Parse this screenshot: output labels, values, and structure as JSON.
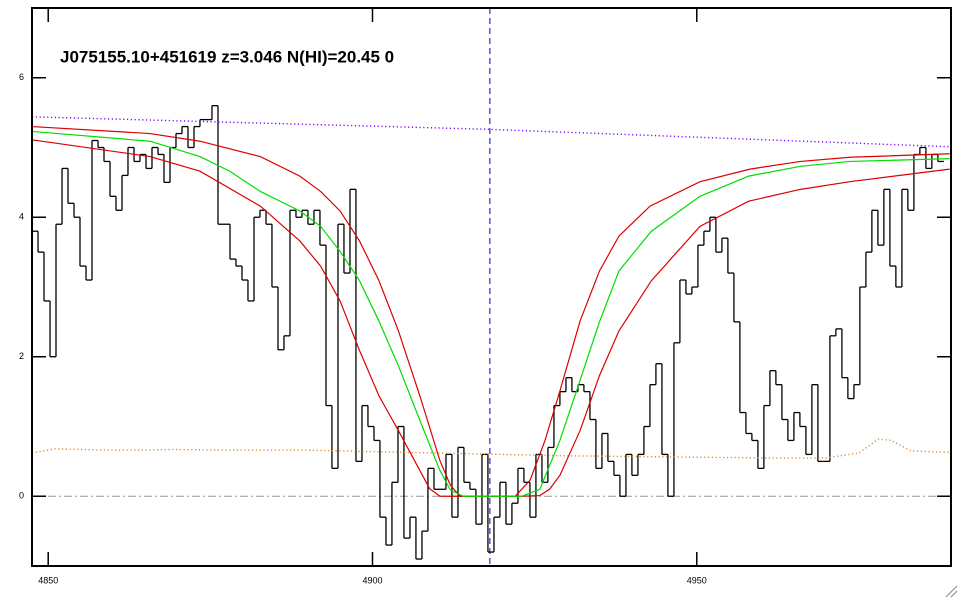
{
  "chart_data": {
    "type": "line",
    "title": "J075155.10+451619 z=3.046 N(HI)=20.45 0",
    "xlim": [
      4847.5,
      4989.2
    ],
    "ylim": [
      -1.0,
      7.0
    ],
    "xticks": [
      4850,
      4900,
      4950
    ],
    "yticks": [
      0,
      2,
      4,
      6
    ],
    "vline": 4918.1,
    "vline_color": "#0000cc",
    "hline": 0,
    "hline_color": "#999999",
    "series": [
      {
        "color": "#000000",
        "drawstyle": "steps",
        "x": [
          4847.5,
          4848.43,
          4849.35,
          4850.28,
          4851.2,
          4852.13,
          4853.05,
          4853.98,
          4854.9,
          4855.83,
          4856.75,
          4857.68,
          4858.6,
          4859.53,
          4860.45,
          4861.38,
          4862.3,
          4863.23,
          4864.15,
          4865.08,
          4866.0,
          4866.93,
          4867.85,
          4868.78,
          4869.7,
          4870.63,
          4871.55,
          4872.48,
          4873.4,
          4874.33,
          4875.25,
          4876.18,
          4877.1,
          4878.03,
          4878.95,
          4879.88,
          4880.8,
          4881.73,
          4882.65,
          4883.58,
          4884.5,
          4885.43,
          4886.35,
          4887.28,
          4888.2,
          4889.13,
          4890.05,
          4890.98,
          4891.9,
          4892.83,
          4893.75,
          4894.68,
          4895.6,
          4896.53,
          4897.45,
          4898.38,
          4899.3,
          4900.23,
          4901.15,
          4902.08,
          4903.0,
          4903.93,
          4904.85,
          4905.78,
          4906.7,
          4907.63,
          4908.55,
          4909.48,
          4910.4,
          4911.33,
          4912.25,
          4913.18,
          4914.1,
          4915.03,
          4915.95,
          4916.88,
          4917.8,
          4918.73,
          4919.65,
          4920.58,
          4921.5,
          4922.43,
          4923.35,
          4924.28,
          4925.2,
          4926.13,
          4927.05,
          4927.98,
          4928.9,
          4929.83,
          4930.75,
          4931.68,
          4932.6,
          4933.53,
          4934.45,
          4935.38,
          4936.3,
          4937.23,
          4938.15,
          4939.08,
          4940.0,
          4940.93,
          4941.85,
          4942.78,
          4943.7,
          4944.63,
          4945.55,
          4946.48,
          4947.4,
          4948.33,
          4949.25,
          4950.18,
          4951.1,
          4952.03,
          4952.95,
          4953.88,
          4954.8,
          4955.73,
          4956.65,
          4957.58,
          4958.5,
          4959.43,
          4960.35,
          4961.28,
          4962.2,
          4963.13,
          4964.05,
          4964.98,
          4965.9,
          4966.83,
          4967.75,
          4968.68,
          4969.6,
          4970.53,
          4971.45,
          4972.38,
          4973.3,
          4974.23,
          4975.15,
          4976.08,
          4977.0,
          4977.93,
          4978.85,
          4979.78,
          4980.7,
          4981.63,
          4982.55,
          4983.48,
          4984.4,
          4985.33,
          4986.25,
          4987.18
        ],
        "values": [
          3.8,
          3.5,
          2.8,
          2.0,
          3.9,
          4.7,
          4.2,
          4.0,
          3.3,
          3.1,
          5.1,
          5.0,
          4.8,
          4.3,
          4.1,
          4.6,
          5.0,
          4.8,
          4.9,
          4.7,
          5.0,
          4.9,
          4.5,
          5.0,
          5.2,
          5.3,
          5.0,
          5.3,
          5.4,
          5.4,
          5.6,
          3.9,
          3.9,
          3.4,
          3.3,
          3.1,
          2.8,
          4.0,
          4.1,
          3.9,
          3.0,
          2.1,
          2.3,
          4.1,
          4.0,
          4.1,
          3.9,
          4.1,
          3.6,
          1.3,
          0.4,
          3.9,
          3.2,
          4.4,
          0.5,
          1.3,
          1.0,
          0.8,
          -0.3,
          -0.7,
          0.2,
          1.0,
          -0.6,
          -0.3,
          -0.9,
          -0.5,
          0.4,
          0.1,
          0.1,
          0.6,
          -0.3,
          0.7,
          0.2,
          0.1,
          -0.4,
          0.6,
          -0.8,
          -0.3,
          0.2,
          -0.4,
          -0.1,
          0.4,
          0.2,
          -0.3,
          0.6,
          0.2,
          0.7,
          1.3,
          1.5,
          1.7,
          1.5,
          1.6,
          1.5,
          1.1,
          0.4,
          0.9,
          0.5,
          0.3,
          0.0,
          0.6,
          0.3,
          0.6,
          1.0,
          1.6,
          1.9,
          0.6,
          0.0,
          2.2,
          3.1,
          2.9,
          3.0,
          3.6,
          3.8,
          4.0,
          3.5,
          3.7,
          3.2,
          2.5,
          1.2,
          0.9,
          0.8,
          0.4,
          1.3,
          1.8,
          1.6,
          1.1,
          0.8,
          1.2,
          1.0,
          0.6,
          1.6,
          0.5,
          0.5,
          2.3,
          2.4,
          1.7,
          1.4,
          1.6,
          3.0,
          3.5,
          4.1,
          3.6,
          4.4,
          3.3,
          3.0,
          4.4,
          4.1,
          4.9,
          5.0,
          4.7,
          4.9,
          4.8
        ]
      },
      {
        "color": "#8000ff",
        "dash": "dotted",
        "x": [
          4847.5,
          4918.1,
          4989.2
        ],
        "values": [
          5.44,
          5.26,
          5.01
        ]
      },
      {
        "color": "#e08a2c",
        "dash": "dotted",
        "x": [
          4847.5,
          4851,
          4860,
          4870,
          4880,
          4890,
          4900,
          4910,
          4920,
          4930,
          4940,
          4950,
          4960,
          4970,
          4975,
          4978,
          4980,
          4983,
          4989
        ],
        "values": [
          0.62,
          0.68,
          0.66,
          0.67,
          0.66,
          0.66,
          0.64,
          0.62,
          0.6,
          0.58,
          0.57,
          0.56,
          0.55,
          0.55,
          0.62,
          0.82,
          0.8,
          0.65,
          0.63
        ]
      },
      {
        "color": "#dd0000",
        "x": [
          4847.5,
          4865.7,
          4873.4,
          4882.7,
          4888.8,
          4892,
          4895,
          4898,
          4901,
          4904,
          4907.3,
          4908.8,
          4910.4,
          4923,
          4925.8,
          4927.3,
          4928.9,
          4932,
          4935,
          4938,
          4943,
          4950.5,
          4958,
          4966,
          4973.6,
          4989
        ],
        "values": [
          5.11,
          4.87,
          4.66,
          4.16,
          3.66,
          3.3,
          2.8,
          2.09,
          1.44,
          0.94,
          0.37,
          0.11,
          0,
          0,
          0.01,
          0.1,
          0.3,
          0.94,
          1.73,
          2.37,
          3.09,
          3.87,
          4.23,
          4.4,
          4.51,
          4.69
        ]
      },
      {
        "color": "#dd0000",
        "x": [
          4847.5,
          4865.7,
          4873.4,
          4882.7,
          4888.8,
          4892,
          4895,
          4898,
          4901,
          4904,
          4907.3,
          4910.4,
          4912,
          4913.5,
          4922,
          4924.3,
          4926.6,
          4928.9,
          4932,
          4935,
          4938,
          4942.8,
          4950.5,
          4958.2,
          4966,
          4973.6,
          4989
        ],
        "values": [
          5.3,
          5.2,
          5.09,
          4.87,
          4.59,
          4.37,
          4.09,
          3.66,
          3.09,
          2.37,
          1.44,
          0.51,
          0.16,
          0,
          0,
          0.23,
          0.8,
          1.51,
          2.51,
          3.23,
          3.73,
          4.16,
          4.51,
          4.69,
          4.8,
          4.86,
          4.91
        ]
      },
      {
        "color": "#00dd00",
        "x": [
          4847.5,
          4865.7,
          4873.4,
          4878,
          4882.7,
          4888.8,
          4892,
          4895,
          4898,
          4901,
          4904,
          4907.3,
          4910.4,
          4912,
          4914,
          4917,
          4920,
          4923,
          4925.8,
          4928.9,
          4932,
          4935,
          4938,
          4943,
          4950.5,
          4958,
          4966,
          4973.6,
          4989
        ],
        "values": [
          5.23,
          5.09,
          4.87,
          4.66,
          4.37,
          4.09,
          3.87,
          3.51,
          3.09,
          2.51,
          1.87,
          1.09,
          0.37,
          0.09,
          0,
          0,
          0,
          0,
          0.1,
          0.8,
          1.66,
          2.5,
          3.23,
          3.8,
          4.3,
          4.59,
          4.73,
          4.8,
          4.84
        ]
      }
    ]
  }
}
